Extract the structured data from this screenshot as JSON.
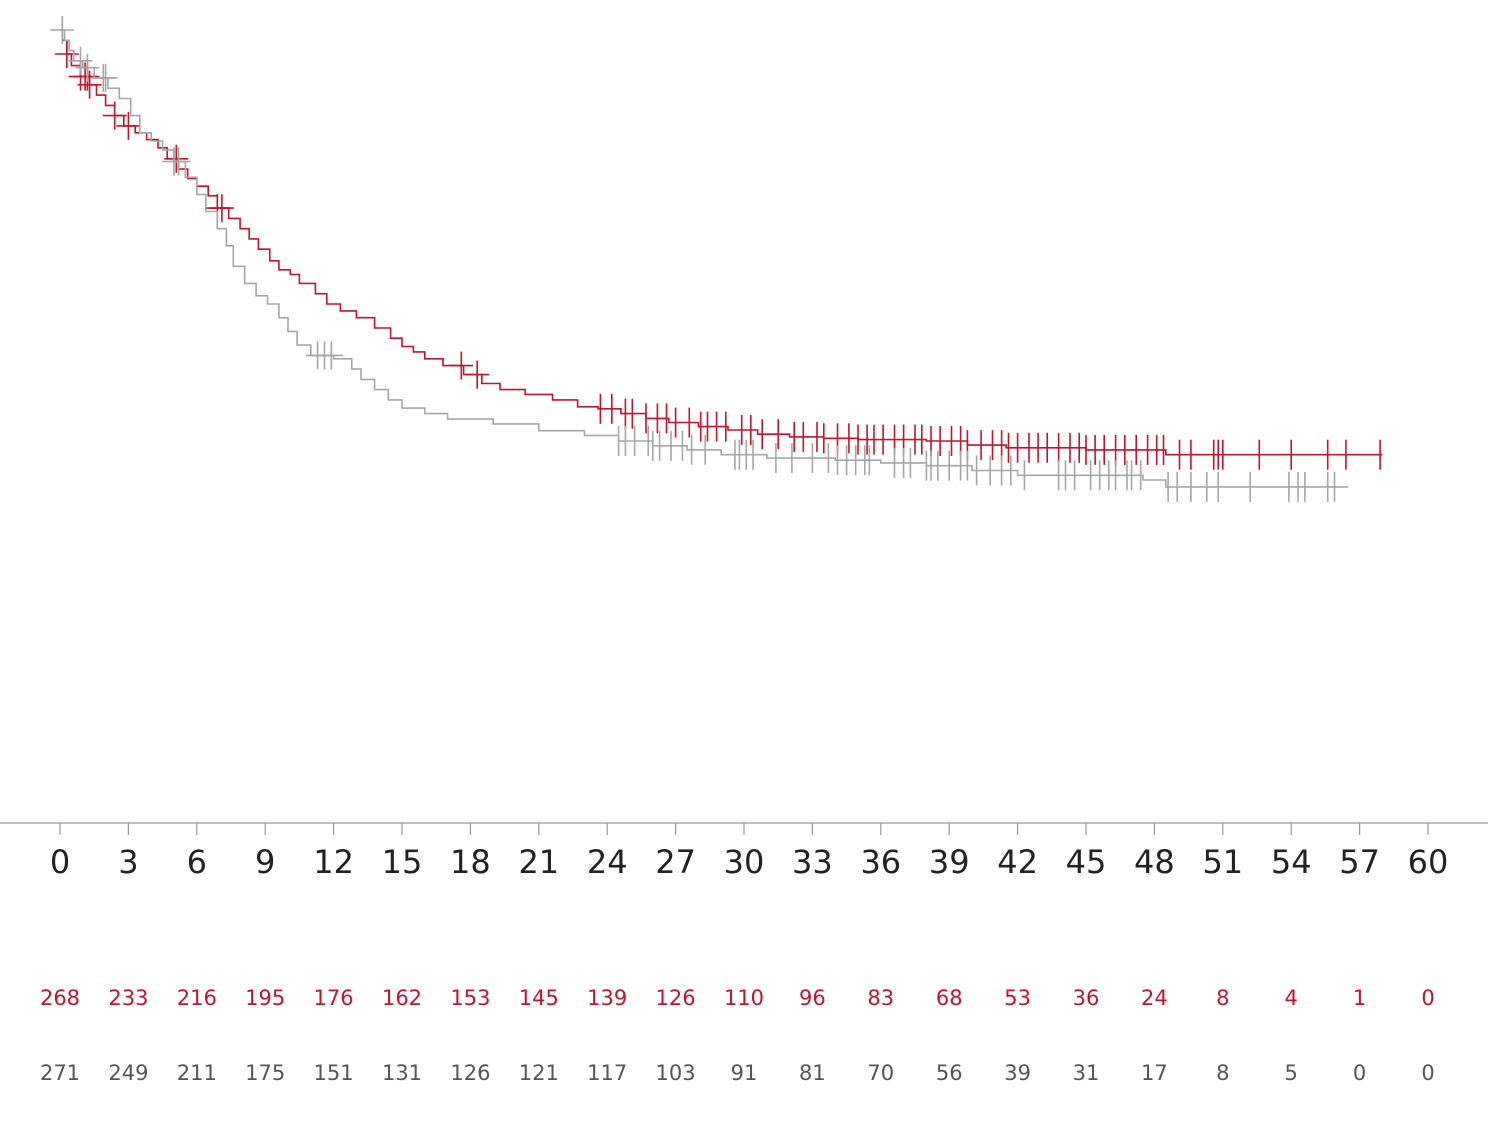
{
  "chart_data": {
    "type": "line",
    "subtype": "kaplan-meier",
    "title": "",
    "xlabel": "",
    "ylabel": "",
    "xlim": [
      0,
      60
    ],
    "ylim": [
      0,
      1
    ],
    "x_ticks": [
      "0",
      "3",
      "6",
      "9",
      "12",
      "15",
      "18",
      "21",
      "24",
      "27",
      "30",
      "33",
      "36",
      "39",
      "42",
      "45",
      "48",
      "51",
      "54",
      "57",
      "60"
    ],
    "grid": false,
    "colors": {
      "red_series": "#c41230",
      "gray_series": "#a6a6a6",
      "axis": "#999999"
    },
    "series": [
      {
        "color": "#c41230",
        "x": [
          0,
          0.1,
          0.3,
          0.5,
          0.9,
          1.3,
          1.6,
          2.0,
          2.4,
          2.8,
          3.3,
          3.8,
          4.3,
          4.7,
          5.2,
          5.6,
          6.0,
          6.5,
          6.9,
          7.4,
          7.9,
          8.3,
          8.7,
          9.2,
          9.6,
          10.1,
          10.5,
          11.2,
          11.7,
          12.3,
          13.0,
          13.8,
          14.5,
          15.0,
          15.5,
          16.0,
          16.8,
          17.7,
          18.5,
          19.3,
          20.4,
          21.6,
          22.7,
          23.6,
          24.6,
          25.7,
          26.7,
          28.0,
          29.3,
          30.6,
          32.0,
          33.5,
          35.0,
          38.0,
          39.8,
          41.5,
          45.0,
          48.5,
          58.0
        ],
        "y": [
          1.0,
          0.985,
          0.965,
          0.948,
          0.932,
          0.92,
          0.905,
          0.89,
          0.875,
          0.86,
          0.85,
          0.84,
          0.828,
          0.812,
          0.797,
          0.783,
          0.772,
          0.758,
          0.74,
          0.725,
          0.71,
          0.695,
          0.68,
          0.663,
          0.65,
          0.643,
          0.63,
          0.615,
          0.6,
          0.59,
          0.58,
          0.565,
          0.55,
          0.538,
          0.53,
          0.52,
          0.51,
          0.497,
          0.484,
          0.475,
          0.468,
          0.46,
          0.45,
          0.447,
          0.44,
          0.433,
          0.427,
          0.421,
          0.416,
          0.41,
          0.406,
          0.404,
          0.402,
          0.4,
          0.394,
          0.39,
          0.387,
          0.38,
          0.38
        ],
        "censor_x": [
          0.3,
          0.9,
          1.1,
          1.2,
          1.3,
          2.4,
          3.0,
          5.1,
          6.9,
          7.1,
          17.6,
          18.3,
          23.7,
          24.2,
          24.8,
          25.1,
          25.7,
          26.2,
          26.6,
          27.0,
          27.6,
          28.1,
          28.4,
          28.8,
          29.2,
          29.9,
          30.3,
          30.8,
          31.5,
          32.2,
          32.6,
          33.2,
          33.5,
          34.1,
          34.6,
          35.0,
          35.4,
          35.7,
          36.1,
          36.6,
          37.0,
          37.5,
          37.8,
          38.2,
          38.6,
          39.1,
          39.5,
          39.8,
          40.4,
          40.9,
          41.3,
          41.6,
          42.0,
          42.5,
          42.9,
          43.3,
          43.8,
          44.3,
          44.7,
          45.0,
          45.4,
          45.8,
          46.3,
          46.7,
          47.2,
          47.7,
          48.1,
          48.4,
          49.1,
          49.6,
          50.6,
          50.8,
          51.0,
          52.6,
          54.0,
          55.6,
          56.4,
          57.9
        ]
      },
      {
        "color": "#a6a6a6",
        "x": [
          0,
          0.2,
          0.4,
          0.6,
          1.0,
          1.5,
          2.1,
          2.6,
          3.1,
          3.5,
          4.0,
          4.5,
          5.0,
          5.5,
          6.0,
          6.4,
          6.9,
          7.3,
          7.6,
          8.1,
          8.6,
          9.1,
          9.6,
          10.0,
          10.4,
          11.0,
          12.0,
          12.8,
          13.2,
          13.8,
          14.4,
          15.0,
          16.0,
          17.0,
          19.0,
          21.0,
          23.0,
          24.5,
          26.0,
          27.5,
          29.0,
          31.0,
          34.0,
          36.0,
          38.0,
          40.0,
          42.0,
          47.5,
          48.5,
          56.5
        ],
        "y": [
          1.0,
          0.985,
          0.97,
          0.955,
          0.945,
          0.93,
          0.915,
          0.9,
          0.875,
          0.85,
          0.838,
          0.825,
          0.808,
          0.785,
          0.76,
          0.735,
          0.71,
          0.685,
          0.655,
          0.63,
          0.612,
          0.6,
          0.58,
          0.56,
          0.54,
          0.525,
          0.52,
          0.505,
          0.49,
          0.475,
          0.46,
          0.448,
          0.44,
          0.432,
          0.425,
          0.415,
          0.408,
          0.4,
          0.393,
          0.387,
          0.38,
          0.375,
          0.372,
          0.368,
          0.364,
          0.357,
          0.35,
          0.343,
          0.333,
          0.333
        ],
        "censor_x": [
          0.1,
          0.9,
          1.2,
          1.9,
          2.0,
          5.0,
          5.2,
          11.3,
          11.6,
          11.9,
          24.5,
          24.8,
          25.2,
          25.8,
          26.0,
          26.3,
          26.8,
          27.3,
          27.7,
          28.3,
          29.6,
          29.8,
          30.1,
          30.4,
          31.4,
          32.1,
          33.0,
          33.7,
          34.1,
          34.5,
          34.9,
          35.3,
          35.5,
          36.6,
          37.0,
          37.3,
          38.0,
          38.2,
          38.5,
          39.0,
          39.5,
          39.8,
          40.2,
          40.8,
          41.3,
          41.7,
          42.3,
          43.8,
          44.1,
          44.5,
          45.2,
          45.6,
          46.0,
          46.3,
          46.8,
          47.0,
          47.4,
          48.6,
          49.0,
          49.6,
          50.3,
          50.8,
          52.2,
          53.9,
          54.3,
          54.6,
          55.6,
          55.9
        ]
      }
    ],
    "risk_table": {
      "times": [
        "0",
        "3",
        "6",
        "9",
        "12",
        "15",
        "18",
        "21",
        "24",
        "27",
        "30",
        "33",
        "36",
        "39",
        "42",
        "45",
        "48",
        "51",
        "54",
        "57",
        "60"
      ],
      "rows": [
        {
          "color": "#c41230",
          "values": [
            "268",
            "233",
            "216",
            "195",
            "176",
            "162",
            "153",
            "145",
            "139",
            "126",
            "110",
            "96",
            "83",
            "68",
            "53",
            "36",
            "24",
            "8",
            "4",
            "1",
            "0"
          ]
        },
        {
          "color": "#555555",
          "values": [
            "271",
            "249",
            "211",
            "175",
            "151",
            "131",
            "126",
            "121",
            "117",
            "103",
            "91",
            "81",
            "70",
            "56",
            "39",
            "31",
            "17",
            "8",
            "5",
            "0",
            "0"
          ]
        }
      ]
    }
  }
}
